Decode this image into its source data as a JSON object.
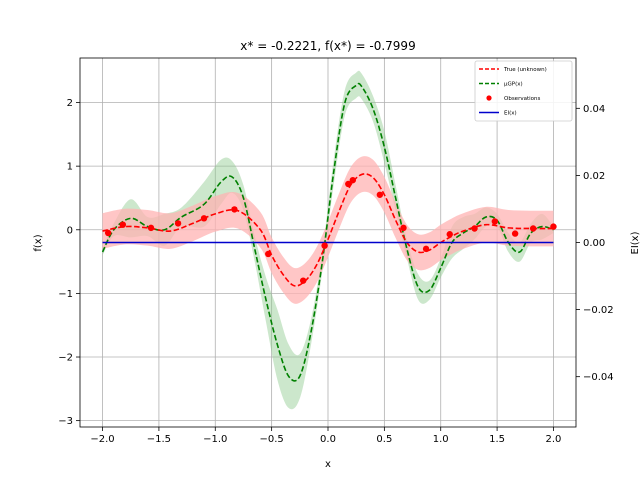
{
  "chart_data": {
    "type": "line",
    "title": "x* = -0.2221, f(x*) = -0.7999",
    "xlabel": "x",
    "ylabel": "f(x)",
    "ylabel_right": "EI(x)",
    "xlim": [
      -2.2,
      2.2
    ],
    "ylim": [
      -3.1,
      2.7
    ],
    "ylim_right": [
      -0.055,
      0.055
    ],
    "grid": true,
    "legend_position": "top-right",
    "x_ticks": [
      -2.0,
      -1.5,
      -1.0,
      -0.5,
      0.0,
      0.5,
      1.0,
      1.5,
      2.0
    ],
    "x_tick_labels": [
      "−2.0",
      "−1.5",
      "−1.0",
      "−0.5",
      "0.0",
      "0.5",
      "1.0",
      "1.5",
      "2.0"
    ],
    "y_ticks": [
      -3,
      -2,
      -1,
      0,
      1,
      2
    ],
    "y_tick_labels": [
      "−3",
      "−2",
      "−1",
      "0",
      "1",
      "2"
    ],
    "y_ticks_right": [
      -0.04,
      -0.02,
      0.0,
      0.02,
      0.04
    ],
    "y_tick_labels_right": [
      "−0.04",
      "−0.02",
      "0.00",
      "0.02",
      "0.04"
    ],
    "colors": {
      "true": "#ff0000",
      "gp_mean": "#008000",
      "gp_band": "#8fc98f",
      "true_band": "#ffb3b3",
      "observations": "#ff0000",
      "ei": "#0000cc",
      "grid": "#b0b0b0"
    },
    "series": [
      {
        "name": "True (unknown)",
        "style": "dashed",
        "band_halfwidth": 0.28,
        "x": [
          -2.0,
          -1.8,
          -1.6,
          -1.4,
          -1.2,
          -1.0,
          -0.8,
          -0.6,
          -0.5,
          -0.4,
          -0.3,
          -0.2,
          -0.1,
          0.0,
          0.1,
          0.2,
          0.3,
          0.4,
          0.5,
          0.6,
          0.7,
          0.8,
          0.9,
          1.0,
          1.1,
          1.2,
          1.4,
          1.6,
          1.8,
          2.0
        ],
        "y": [
          -0.02,
          0.05,
          0.03,
          -0.02,
          0.1,
          0.25,
          0.3,
          0.0,
          -0.4,
          -0.7,
          -0.88,
          -0.8,
          -0.55,
          -0.15,
          0.3,
          0.7,
          0.87,
          0.82,
          0.55,
          0.15,
          -0.2,
          -0.35,
          -0.32,
          -0.2,
          -0.1,
          -0.02,
          0.08,
          0.03,
          0.02,
          0.02
        ]
      },
      {
        "name": "μGP(x)",
        "style": "dashed",
        "x": [
          -2.0,
          -1.9,
          -1.75,
          -1.6,
          -1.45,
          -1.3,
          -1.1,
          -0.95,
          -0.85,
          -0.75,
          -0.65,
          -0.55,
          -0.45,
          -0.35,
          -0.25,
          -0.15,
          -0.05,
          0.05,
          0.15,
          0.25,
          0.3,
          0.4,
          0.5,
          0.6,
          0.7,
          0.8,
          0.9,
          1.0,
          1.1,
          1.2,
          1.3,
          1.4,
          1.5,
          1.6,
          1.7,
          1.8,
          1.9,
          2.0
        ],
        "y": [
          -0.35,
          0.0,
          0.18,
          0.05,
          0.0,
          0.2,
          0.4,
          0.75,
          0.83,
          0.5,
          -0.3,
          -1.1,
          -1.8,
          -2.3,
          -2.3,
          -1.6,
          -0.5,
          0.9,
          2.0,
          2.27,
          2.25,
          1.9,
          1.3,
          0.5,
          -0.3,
          -0.9,
          -0.95,
          -0.6,
          -0.2,
          -0.05,
          0.05,
          0.2,
          0.15,
          -0.2,
          -0.35,
          -0.05,
          0.05,
          0.0
        ],
        "band_halfwidth": [
          0.05,
          0.1,
          0.3,
          0.15,
          0.25,
          0.15,
          0.35,
          0.35,
          0.25,
          0.2,
          0.2,
          0.35,
          0.55,
          0.5,
          0.35,
          0.2,
          0.15,
          0.2,
          0.2,
          0.2,
          0.2,
          0.2,
          0.25,
          0.2,
          0.15,
          0.2,
          0.15,
          0.15,
          0.25,
          0.25,
          0.2,
          0.15,
          0.1,
          0.15,
          0.15,
          0.15,
          0.2,
          0.05
        ]
      },
      {
        "name": "Observations",
        "style": "points",
        "x": [
          -1.95,
          -1.82,
          -1.57,
          -1.33,
          -1.1,
          -0.83,
          -0.53,
          -0.22,
          -0.03,
          0.18,
          0.22,
          0.46,
          0.67,
          0.87,
          1.08,
          1.3,
          1.48,
          1.66,
          1.82,
          2.0
        ],
        "y": [
          -0.05,
          0.08,
          0.03,
          0.1,
          0.18,
          0.32,
          -0.38,
          -0.8,
          -0.25,
          0.72,
          0.78,
          0.55,
          0.03,
          -0.3,
          -0.07,
          0.02,
          0.13,
          -0.06,
          0.02,
          0.05
        ]
      },
      {
        "name": "EI(x)",
        "style": "solid",
        "axis": "right",
        "x": [
          -2.0,
          2.0
        ],
        "y": [
          0.0,
          0.0
        ]
      }
    ]
  }
}
